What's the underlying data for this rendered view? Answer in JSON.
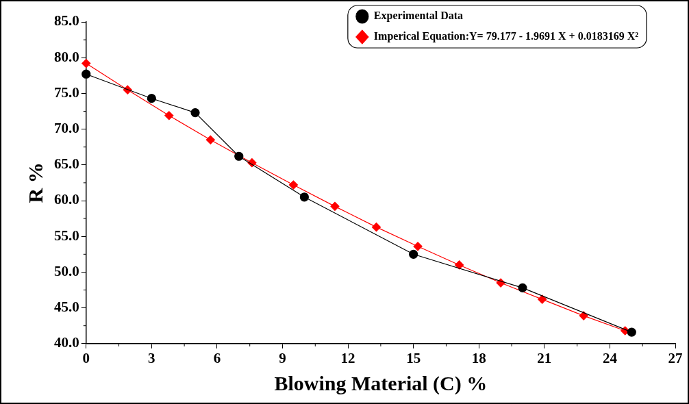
{
  "chart_data": {
    "type": "line",
    "xlabel": "Blowing Material (C) %",
    "ylabel": "R %",
    "xlim": [
      0,
      27
    ],
    "xticks": [
      0,
      3,
      6,
      9,
      12,
      15,
      18,
      21,
      24,
      27
    ],
    "ylim": [
      40,
      85
    ],
    "yticks": [
      {
        "value": 40,
        "label": "40.0"
      },
      {
        "value": 45,
        "label": "45.0"
      },
      {
        "value": 50,
        "label": "50.0"
      },
      {
        "value": 55,
        "label": "55.0"
      },
      {
        "value": 60,
        "label": "60.0"
      },
      {
        "value": 65,
        "label": "65.0"
      },
      {
        "value": 70,
        "label": "70.0"
      },
      {
        "value": 75,
        "label": "75.0"
      },
      {
        "value": 80,
        "label": "80.0"
      },
      {
        "value": 85,
        "label": "85.0"
      }
    ],
    "grid": false,
    "legend": "top right",
    "line_style": "solid",
    "series": [
      {
        "name": "Experimental Data",
        "color": "#000000",
        "marker": "circle",
        "x": [
          0,
          3,
          5,
          7,
          10,
          15,
          20,
          25
        ],
        "values": [
          77.7,
          74.3,
          72.3,
          66.2,
          60.5,
          52.5,
          47.8,
          41.6
        ]
      },
      {
        "name": "Imperical Equation:Y= 79.177 - 1.9691 X + 0.0183169 X²",
        "color": "#ff0000",
        "marker": "diamond",
        "x": [
          0,
          1.9,
          3.8,
          5.7,
          7.6,
          9.5,
          11.4,
          13.3,
          15.2,
          17.1,
          19.0,
          20.9,
          22.8,
          24.7
        ],
        "values": [
          79.2,
          75.5,
          71.9,
          68.5,
          65.3,
          62.2,
          59.2,
          56.3,
          53.6,
          51.0,
          48.5,
          46.2,
          43.9,
          41.8
        ]
      }
    ]
  }
}
